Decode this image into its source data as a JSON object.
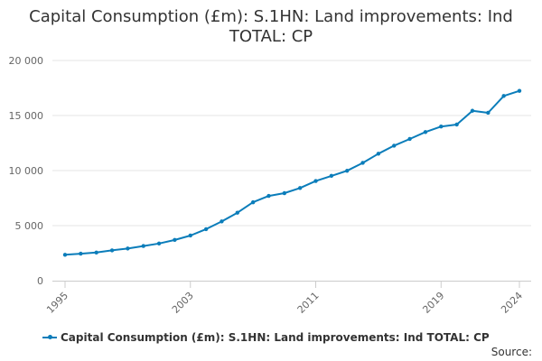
{
  "chart_data": {
    "type": "line",
    "title": "Capital Consumption (£m): S.1HN: Land improvements: Ind TOTAL: CP",
    "xlabel": "",
    "ylabel": "",
    "x": [
      1995,
      1996,
      1997,
      1998,
      1999,
      2000,
      2001,
      2002,
      2003,
      2004,
      2005,
      2006,
      2007,
      2008,
      2009,
      2010,
      2011,
      2012,
      2013,
      2014,
      2015,
      2016,
      2017,
      2018,
      2019,
      2020,
      2021,
      2022,
      2023,
      2024
    ],
    "series": [
      {
        "name": "Capital Consumption (£m): S.1HN: Land improvements: Ind TOTAL: CP",
        "color": "#0b7dba",
        "values": [
          2350,
          2450,
          2560,
          2750,
          2920,
          3150,
          3380,
          3700,
          4100,
          4680,
          5380,
          6170,
          7120,
          7700,
          7950,
          8420,
          9050,
          9520,
          9980,
          10700,
          11530,
          12260,
          12870,
          13500,
          14000,
          14180,
          15430,
          15250,
          16780,
          17240
        ]
      }
    ],
    "x_ticks": [
      "1995",
      "2003",
      "2011",
      "2019",
      "2024"
    ],
    "y_ticks": [
      "0",
      "5 000",
      "10 000",
      "15 000",
      "20 000"
    ],
    "ylim": [
      0,
      20000
    ],
    "grid": true,
    "legend": "bottom"
  },
  "source_label": "Source:"
}
